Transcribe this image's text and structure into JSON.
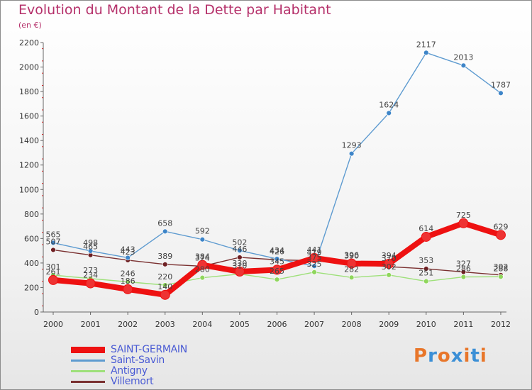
{
  "title": "Evolution du Montant de la Dette par Habitant",
  "subtitle": "(en €)",
  "brand": {
    "text": "Proxiti",
    "letter_colors": [
      "#e8762a",
      "#3b8fd6",
      "#e8762a",
      "#3b8fd6",
      "#e8762a",
      "#3b8fd6",
      "#e8762a"
    ]
  },
  "chart_data": {
    "type": "line",
    "x": [
      "2000",
      "2001",
      "2002",
      "2003",
      "2004",
      "2005",
      "2006",
      "2007",
      "2008",
      "2009",
      "2010",
      "2011",
      "2012"
    ],
    "ylim": [
      0,
      2200
    ],
    "yticks": [
      0,
      200,
      400,
      600,
      800,
      1000,
      1200,
      1400,
      1600,
      1800,
      2000,
      2200
    ],
    "grid": false,
    "legend_position": "bottom-left",
    "series": [
      {
        "name": "SAINT-GERMAIN",
        "color": "#ee1111",
        "marker": "#ee3333",
        "width": 8,
        "values": [
          261,
          234,
          186,
          140,
          384,
          330,
          345,
          441,
          396,
          394,
          614,
          725,
          629
        ]
      },
      {
        "name": "Saint-Savin",
        "color": "#5e9bd0",
        "marker": "#3e85c8",
        "width": 1.4,
        "values": [
          565,
          498,
          443,
          658,
          592,
          502,
          434,
          375,
          1293,
          1624,
          2117,
          2013,
          1787
        ]
      },
      {
        "name": "Antigny",
        "color": "#9ee07a",
        "marker": "#8fd65c",
        "width": 1.4,
        "values": [
          301,
          273,
          246,
          220,
          280,
          310,
          265,
          325,
          282,
          302,
          251,
          286,
          288
        ]
      },
      {
        "name": "Villemort",
        "color": "#7a3030",
        "marker": "#6e1f22",
        "width": 1.4,
        "values": [
          507,
          465,
          423,
          389,
          374,
          446,
          426,
          419,
          390,
          370,
          353,
          327,
          302
        ]
      }
    ]
  }
}
